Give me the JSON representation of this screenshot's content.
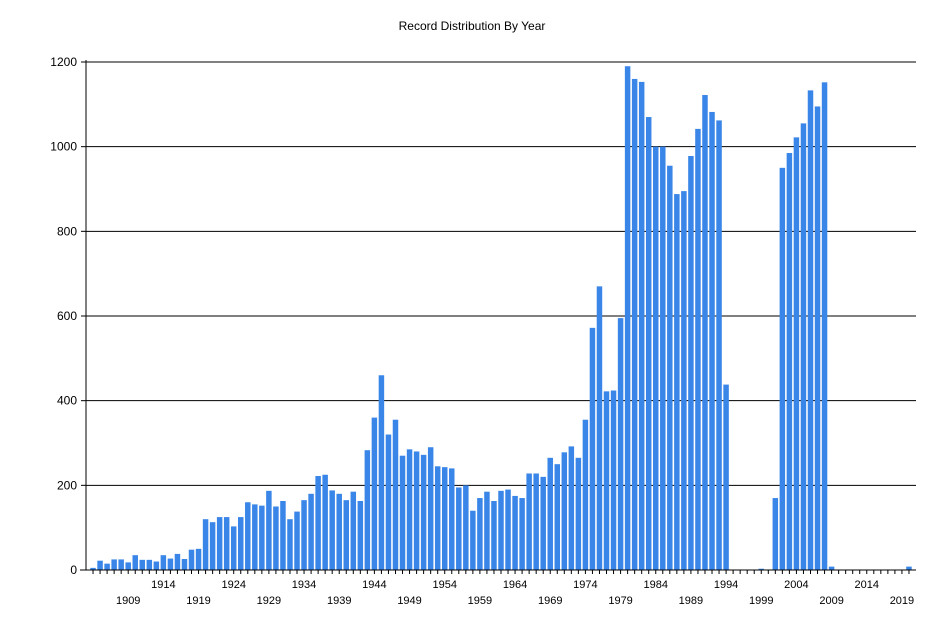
{
  "chart_data": {
    "type": "bar",
    "title": "Record Distribution By Year",
    "xlabel": "",
    "ylabel": "",
    "ylim": [
      0,
      1200
    ],
    "yticks": [
      0,
      200,
      400,
      600,
      800,
      1000,
      1200
    ],
    "grid": "horizontal",
    "legend": "none",
    "xtick_labels_top": [
      "1914",
      "1924",
      "1934",
      "1944",
      "1954",
      "1964",
      "1974",
      "1984",
      "1994",
      "2004",
      "2014"
    ],
    "xtick_labels_bottom": [
      "1909",
      "1919",
      "1929",
      "1939",
      "1949",
      "1959",
      "1969",
      "1979",
      "1989",
      "1999",
      "2009",
      "2019"
    ],
    "categories": [
      1904,
      1905,
      1906,
      1907,
      1908,
      1909,
      1910,
      1911,
      1912,
      1913,
      1914,
      1915,
      1916,
      1917,
      1918,
      1919,
      1920,
      1921,
      1922,
      1923,
      1924,
      1925,
      1926,
      1927,
      1928,
      1929,
      1930,
      1931,
      1932,
      1933,
      1934,
      1935,
      1936,
      1937,
      1938,
      1939,
      1940,
      1941,
      1942,
      1943,
      1944,
      1945,
      1946,
      1947,
      1948,
      1949,
      1950,
      1951,
      1952,
      1953,
      1954,
      1955,
      1956,
      1957,
      1958,
      1959,
      1960,
      1961,
      1962,
      1963,
      1964,
      1965,
      1966,
      1967,
      1968,
      1969,
      1970,
      1971,
      1972,
      1973,
      1974,
      1975,
      1976,
      1977,
      1978,
      1979,
      1980,
      1981,
      1982,
      1983,
      1984,
      1985,
      1986,
      1987,
      1988,
      1989,
      1990,
      1991,
      1992,
      1993,
      1994,
      1995,
      1996,
      1997,
      1998,
      1999,
      2000,
      2001,
      2002,
      2003,
      2004,
      2005,
      2006,
      2007,
      2008,
      2009,
      2010,
      2011,
      2012,
      2013,
      2014,
      2015,
      2016,
      2017,
      2018,
      2019,
      2020
    ],
    "values": [
      5,
      22,
      15,
      25,
      25,
      18,
      35,
      24,
      24,
      20,
      35,
      27,
      38,
      26,
      48,
      50,
      120,
      113,
      125,
      125,
      103,
      125,
      160,
      155,
      152,
      187,
      150,
      163,
      120,
      138,
      165,
      180,
      222,
      225,
      188,
      180,
      165,
      185,
      163,
      283,
      360,
      460,
      320,
      355,
      270,
      285,
      280,
      272,
      290,
      245,
      243,
      240,
      195,
      200,
      140,
      170,
      185,
      163,
      187,
      190,
      175,
      170,
      228,
      228,
      220,
      265,
      250,
      278,
      292,
      265,
      355,
      572,
      670,
      422,
      424,
      595,
      1190,
      1160,
      1153,
      1070,
      1000,
      1000,
      955,
      888,
      895,
      978,
      1042,
      1122,
      1082,
      1062,
      438,
      0,
      0,
      0,
      0,
      3,
      0,
      170,
      950,
      985,
      1022,
      1055,
      1133,
      1095,
      1152,
      8,
      0,
      0,
      0,
      0,
      0,
      0,
      0,
      0,
      0,
      0,
      8
    ],
    "bar_color": "#3a86e8"
  }
}
